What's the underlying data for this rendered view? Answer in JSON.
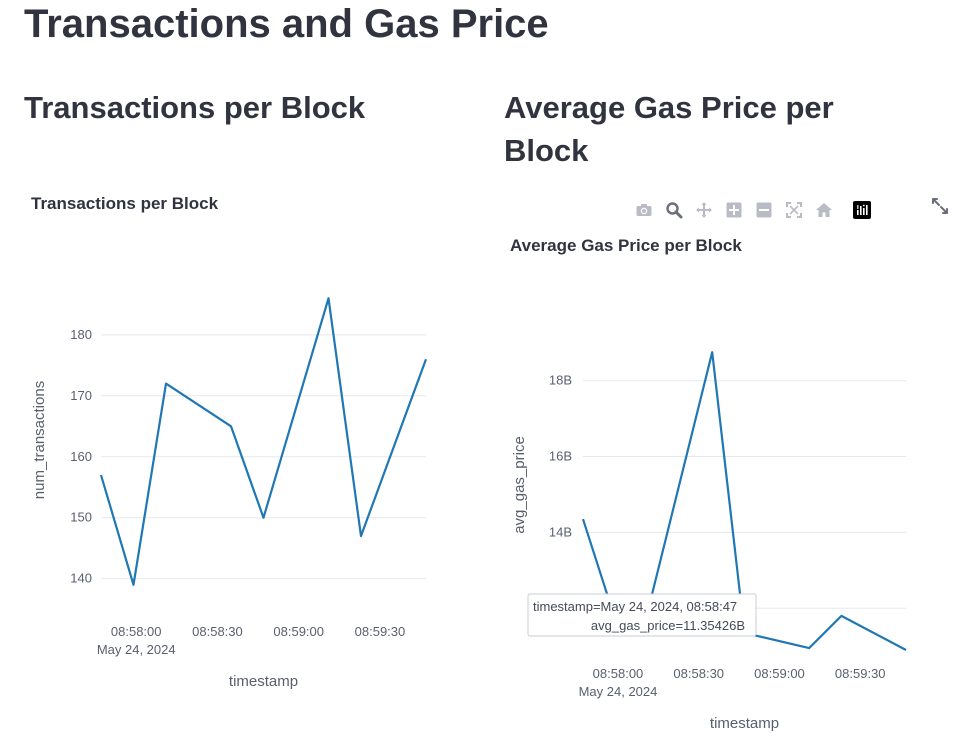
{
  "page": {
    "title": "Transactions and Gas Price",
    "section_left_title": "Transactions per Block",
    "section_right_title": "Average Gas Price per Block"
  },
  "modebar": {
    "icons": [
      "camera-icon",
      "zoom-icon",
      "pan-icon",
      "zoom-in-icon",
      "zoom-out-icon",
      "autoscale-icon",
      "reset-axes-icon",
      "plotly-logo-icon"
    ],
    "fullscreen_icon": "fullscreen-icon",
    "logo_color": "#000000"
  },
  "tooltip": {
    "line1": "timestamp=May 24, 2024, 08:58:47",
    "line2": "avg_gas_price=11.35426B"
  },
  "chart_data": [
    {
      "type": "line",
      "title": "Transactions per Block",
      "xlabel": "timestamp",
      "ylabel": "num_transactions",
      "x_tick_labels": [
        "08:58:00",
        "08:58:30",
        "08:59:00",
        "08:59:30"
      ],
      "x_tick_sublabel": "May 24, 2024",
      "y_tick_labels": [
        "140",
        "150",
        "160",
        "170",
        "180"
      ],
      "ylim": [
        136.5,
        189
      ],
      "grid": true,
      "color": "#1f77b4",
      "series": [
        {
          "x": [
            "08:57:47",
            "08:57:59",
            "08:58:11",
            "08:58:35",
            "08:58:47",
            "08:59:11",
            "08:59:23",
            "08:59:47"
          ],
          "values": [
            157,
            139,
            172,
            165,
            150,
            186,
            147,
            176
          ]
        }
      ]
    },
    {
      "type": "line",
      "title": "Average Gas Price per Block",
      "xlabel": "timestamp",
      "ylabel": "avg_gas_price",
      "x_tick_labels": [
        "08:58:00",
        "08:58:30",
        "08:59:00",
        "08:59:30"
      ],
      "x_tick_sublabel": "May 24, 2024",
      "y_tick_labels": [
        "12B",
        "14B",
        "16B",
        "18B"
      ],
      "ylim": [
        10.9,
        19.6
      ],
      "grid": true,
      "color": "#1f77b4",
      "series": [
        {
          "x": [
            "08:57:47",
            "08:57:59",
            "08:58:11",
            "08:58:35",
            "08:58:47",
            "08:59:11",
            "08:59:23",
            "08:59:47"
          ],
          "values": [
            14.35,
            11.7,
            11.9,
            18.75,
            11.35,
            10.95,
            11.8,
            10.9
          ]
        }
      ]
    }
  ]
}
